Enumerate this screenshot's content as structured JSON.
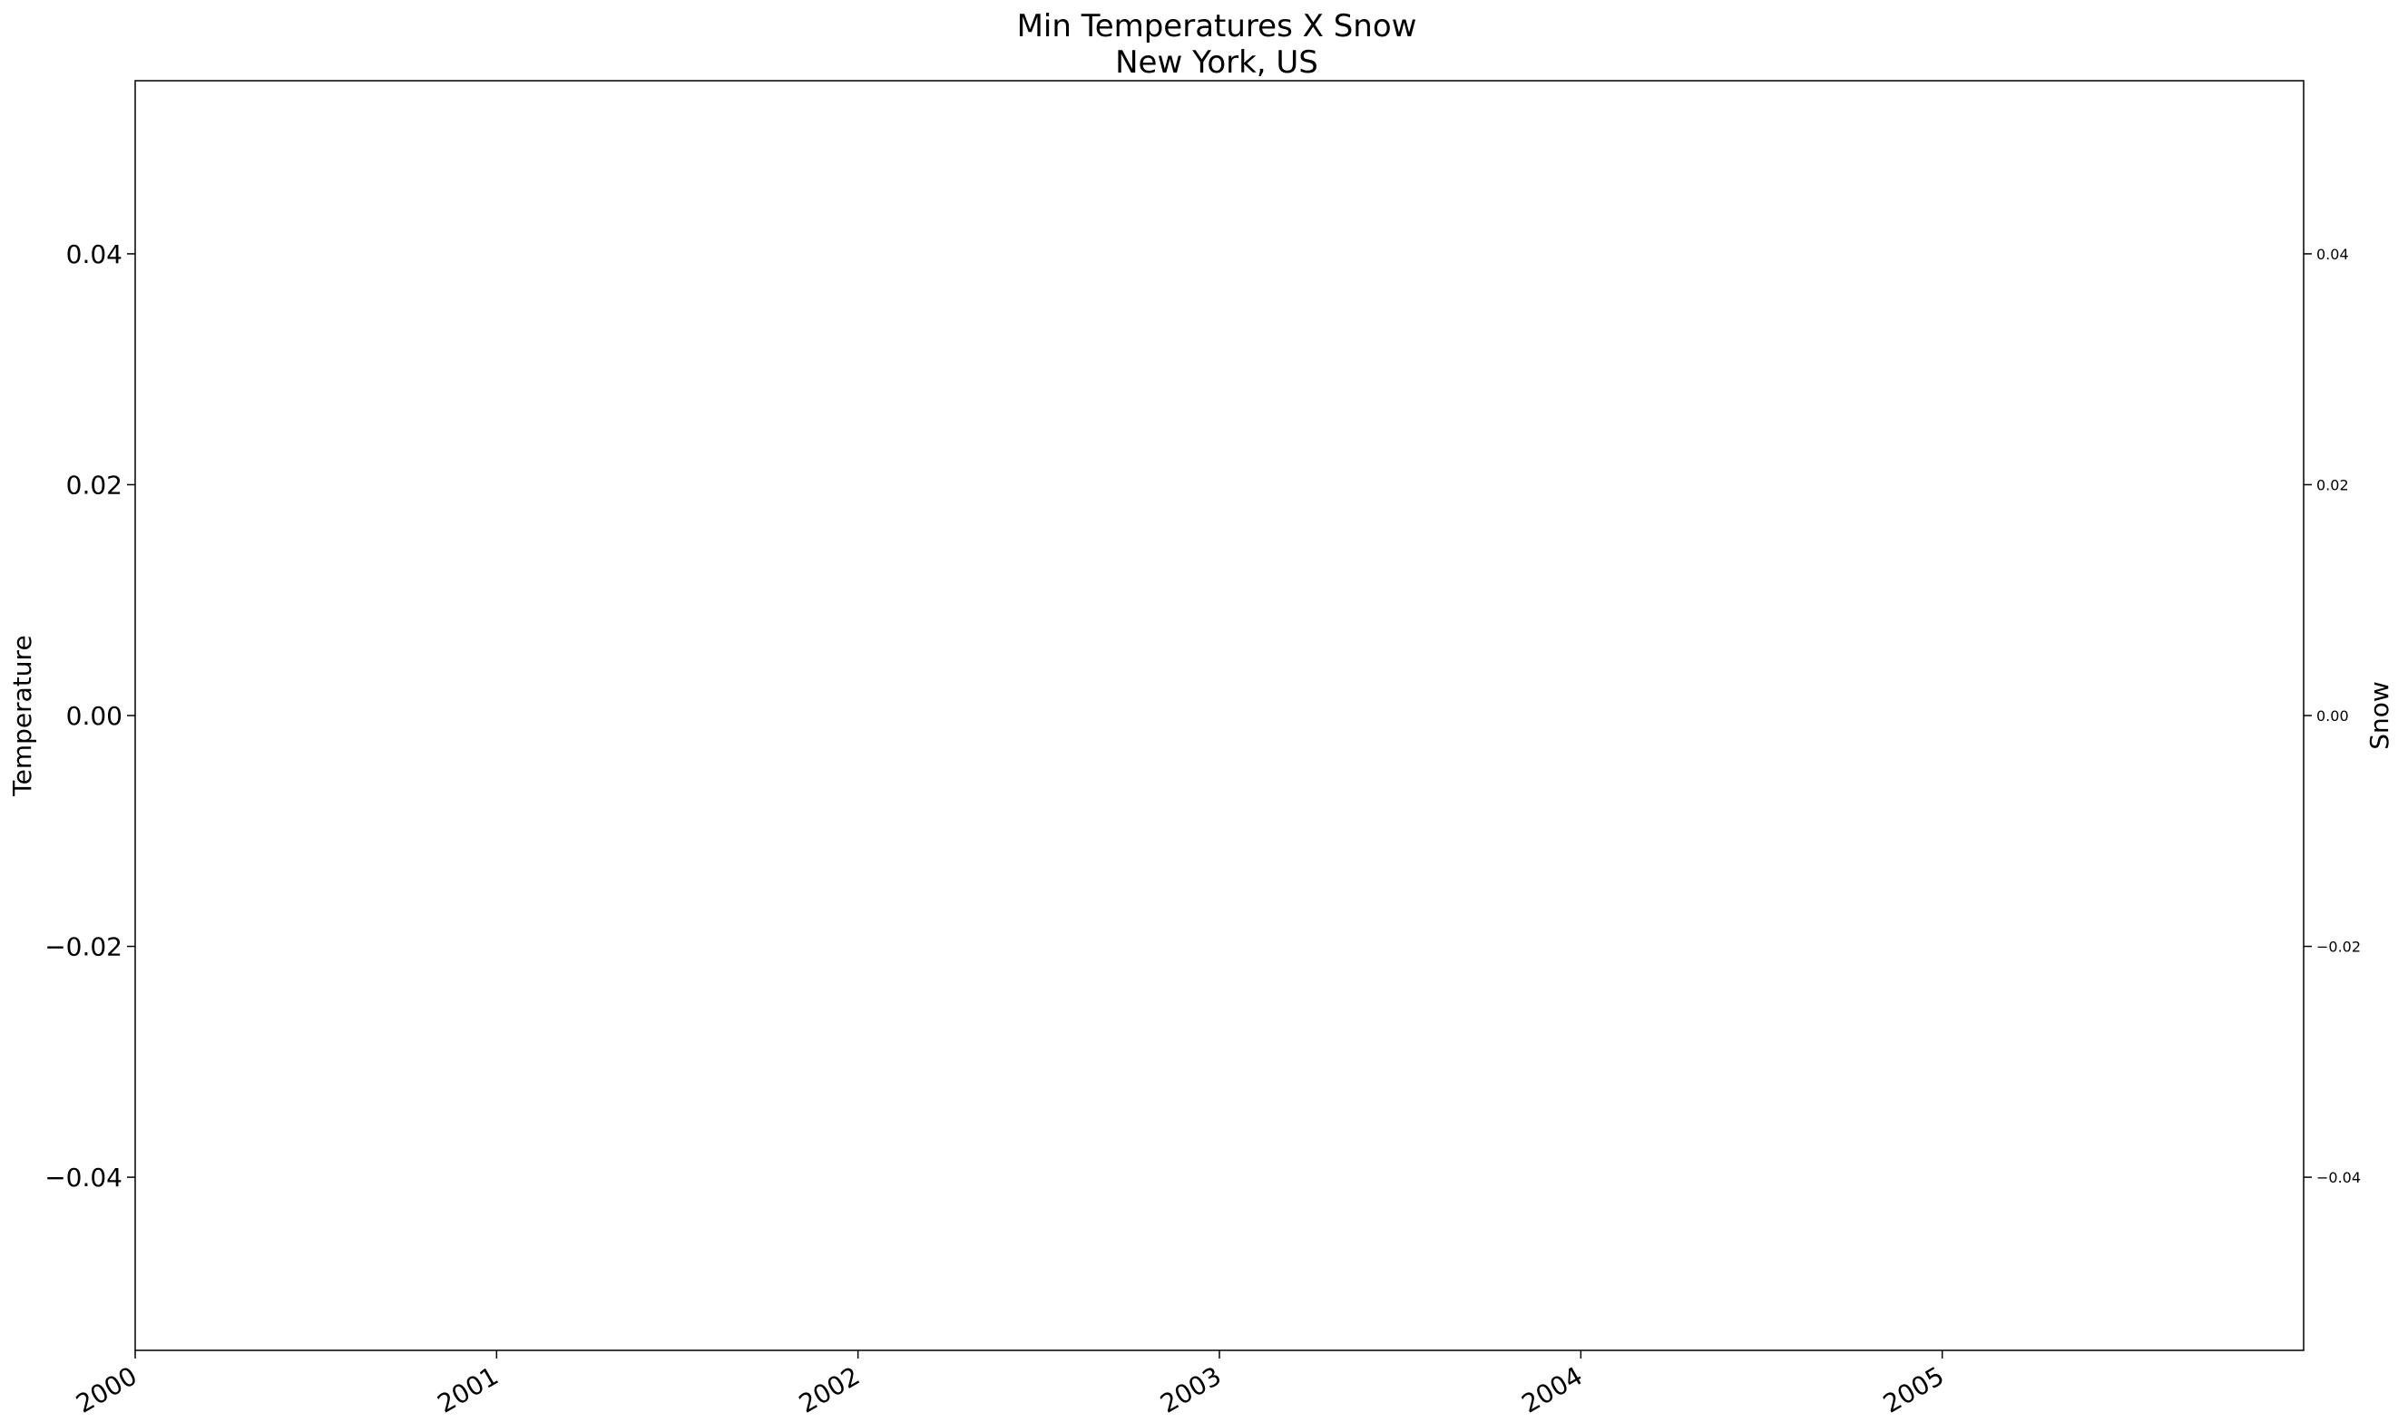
{
  "chart_data": {
    "type": "line",
    "title": "Min Temperatures X Snow",
    "subtitle": "New York, US",
    "ylabel": "Temperature",
    "y2label": "Snow",
    "xlabel": "",
    "x_ticks": [
      "2000",
      "2001",
      "2002",
      "2003",
      "2004",
      "2005"
    ],
    "x_range": [
      2000,
      2006
    ],
    "y_ticks": [
      0.04,
      0.02,
      0.0,
      -0.02,
      -0.04
    ],
    "y_tick_labels": [
      "0.04",
      "0.02",
      "0.00",
      "−0.02",
      "−0.04"
    ],
    "ylim": [
      -0.055,
      0.055
    ],
    "y2_ticks": [
      0.04,
      0.02,
      0.0,
      -0.02,
      -0.04
    ],
    "y2_tick_labels": [
      "0.04",
      "0.02",
      "0.00",
      "−0.02",
      "−0.04"
    ],
    "y2lim": [
      -0.055,
      0.055
    ],
    "series": [],
    "grid": false,
    "legend": "none"
  }
}
